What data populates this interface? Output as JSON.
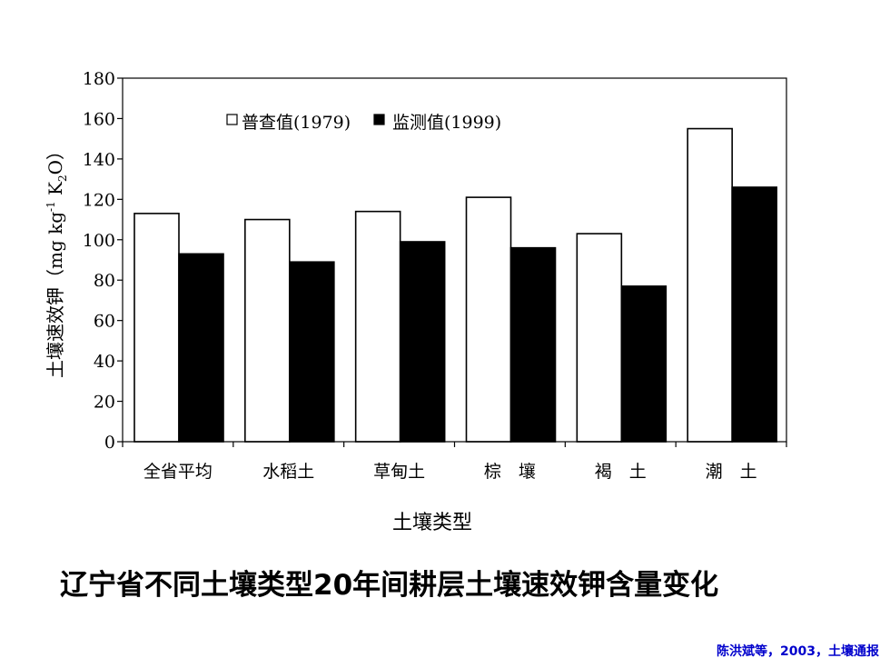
{
  "chart_data": {
    "type": "bar",
    "ylabel": "土壤速效钾（mg kg",
    "ylabel_sup": "-1",
    "ylabel_unit": " K",
    "ylabel_sub": "2",
    "ylabel_end": "O）",
    "xlabel": "土壤类型",
    "ylim": [
      0,
      180
    ],
    "yticks": [
      "0",
      "20",
      "40",
      "60",
      "80",
      "100",
      "120",
      "140",
      "160",
      "180"
    ],
    "categories": [
      "全省平均",
      "水稻土",
      "草甸土",
      "棕　壤",
      "褐　土",
      "潮　土"
    ],
    "series": [
      {
        "name": "普查值(1979)",
        "values": [
          113,
          110,
          114,
          121,
          103,
          155
        ],
        "color": "#ffffff"
      },
      {
        "name": "监测值(1999)",
        "values": [
          93,
          89,
          99,
          96,
          77,
          126
        ],
        "color": "#000000"
      }
    ],
    "legend_position": "top-left",
    "grid": false
  },
  "caption": "辽宁省不同土壤类型20年间耕层土壤速效钾含量变化",
  "source": "陈洪斌等，2003，土壤通报",
  "colors": {
    "source_text": "#0000cc"
  }
}
